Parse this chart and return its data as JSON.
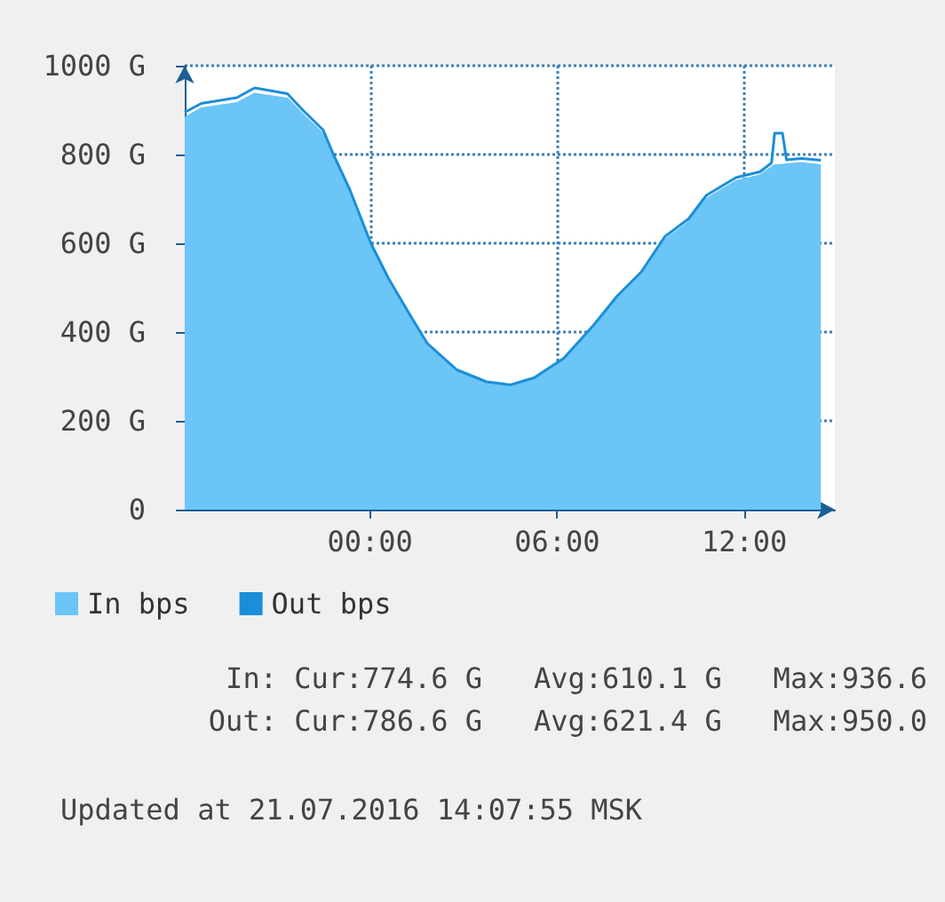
{
  "chart_data": {
    "type": "area",
    "x": [
      -5.94,
      -5.41,
      -4.27,
      -3.7,
      -2.65,
      -2.17,
      -1.5,
      -1.18,
      -0.65,
      0.02,
      0.59,
      1.26,
      1.83,
      2.78,
      3.73,
      4.5,
      5.26,
      6.21,
      7.16,
      7.92,
      8.69,
      9.45,
      10.21,
      10.78,
      11.73,
      12.5,
      12.87,
      12.97,
      13.22,
      13.35,
      13.83,
      14.45
    ],
    "series": [
      {
        "name": "In bps",
        "color": "#6cc5f7",
        "values": [
          882,
          903,
          915,
          936,
          925,
          890,
          845,
          792,
          712,
          593,
          514,
          435,
          370,
          310,
          283,
          277,
          292,
          335,
          408,
          473,
          527,
          606,
          646,
          699,
          739,
          752,
          770,
          775,
          776,
          777,
          780,
          775
        ]
      },
      {
        "name": "Out bps",
        "type": "line",
        "color": "#1a8fd8",
        "values": [
          895,
          915,
          928,
          950,
          937,
          901,
          855,
          801,
          721,
          601,
          521,
          441,
          375,
          315,
          288,
          281,
          297,
          341,
          415,
          481,
          535,
          615,
          655,
          708,
          748,
          761,
          781,
          848,
          848,
          788,
          791,
          787
        ]
      }
    ],
    "xlim": [
      -5.94,
      14.9
    ],
    "xticks": [
      {
        "value": 0,
        "label": "00:00"
      },
      {
        "value": 6,
        "label": "06:00"
      },
      {
        "value": 12,
        "label": "12:00"
      }
    ],
    "ylim": [
      0,
      1000
    ],
    "yticks": [
      {
        "value": 0,
        "label": "0"
      },
      {
        "value": 200,
        "label": "200 G"
      },
      {
        "value": 400,
        "label": "400 G"
      },
      {
        "value": 600,
        "label": "600 G"
      },
      {
        "value": 800,
        "label": "800 G"
      },
      {
        "value": 1000,
        "label": "1000 G"
      }
    ],
    "grid": true,
    "legend": "bottom left",
    "annotations": [
      "In: Cur:774.6 G   Avg:610.1 G   Max:936.6",
      "Out: Cur:786.6 G   Avg:621.4 G   Max:950.0",
      "Updated at 21.07.2016 14:07:55 MSK"
    ]
  }
}
